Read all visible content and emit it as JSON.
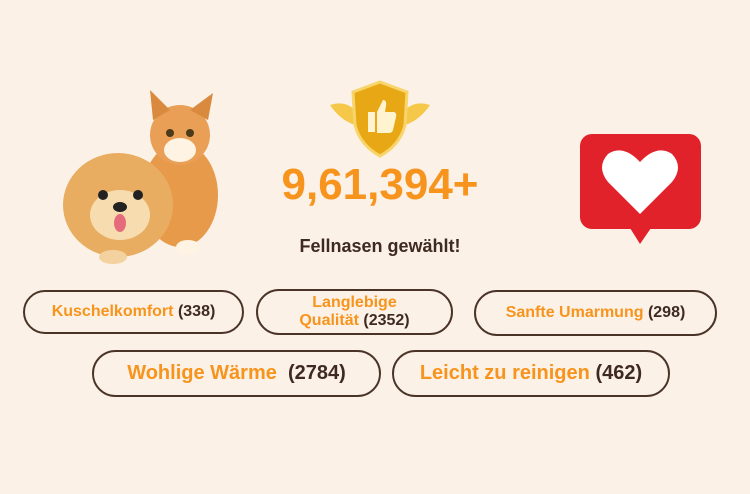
{
  "stats": {
    "count": "9,61,394+",
    "caption": "Fellnasen gewählt!"
  },
  "icons": [
    "cat-dog-image",
    "shield-thumbs-up-icon",
    "heart-bubble-icon"
  ],
  "colors": {
    "accent": "#f7941d",
    "text": "#3e2a20",
    "background": "#fcf1e6",
    "heart": "#e2222a"
  },
  "features": [
    {
      "label": "Kuschelkomfort",
      "count": "(338)"
    },
    {
      "label": "Langlebige Qualität",
      "count": "(2352)"
    },
    {
      "label": "Sanfte Umarmung",
      "count": "(298)"
    },
    {
      "label": "Wohlige Wärme",
      "count": "(2784)"
    },
    {
      "label": "Leicht zu reinigen",
      "count": "(462)"
    }
  ]
}
